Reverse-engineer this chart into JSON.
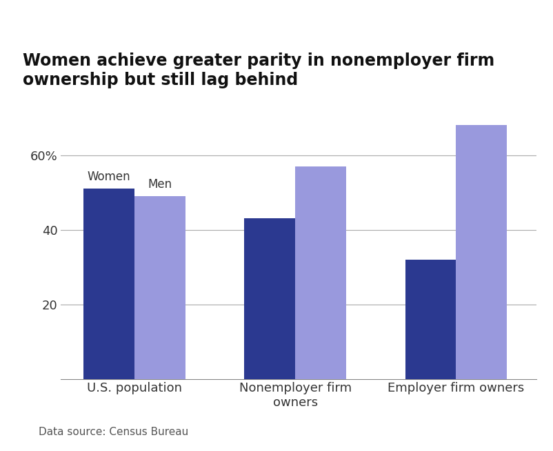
{
  "title": "Women achieve greater parity in nonemployer firm\nownership but still lag behind",
  "categories": [
    "U.S. population",
    "Nonemployer firm\nowners",
    "Employer firm owners"
  ],
  "women_values": [
    51,
    43,
    32
  ],
  "men_values": [
    49,
    57,
    68
  ],
  "women_color": "#2B3990",
  "men_color": "#9999DD",
  "ylim": [
    0,
    75
  ],
  "yticks": [
    20,
    40,
    60
  ],
  "ytick_labels": [
    "20",
    "40",
    "60%"
  ],
  "bar_width": 0.38,
  "legend_labels": [
    "Women",
    "Men"
  ],
  "footnote": "Data source: Census Bureau",
  "title_fontsize": 17,
  "tick_fontsize": 13,
  "footnote_fontsize": 11,
  "background_color": "#ffffff"
}
